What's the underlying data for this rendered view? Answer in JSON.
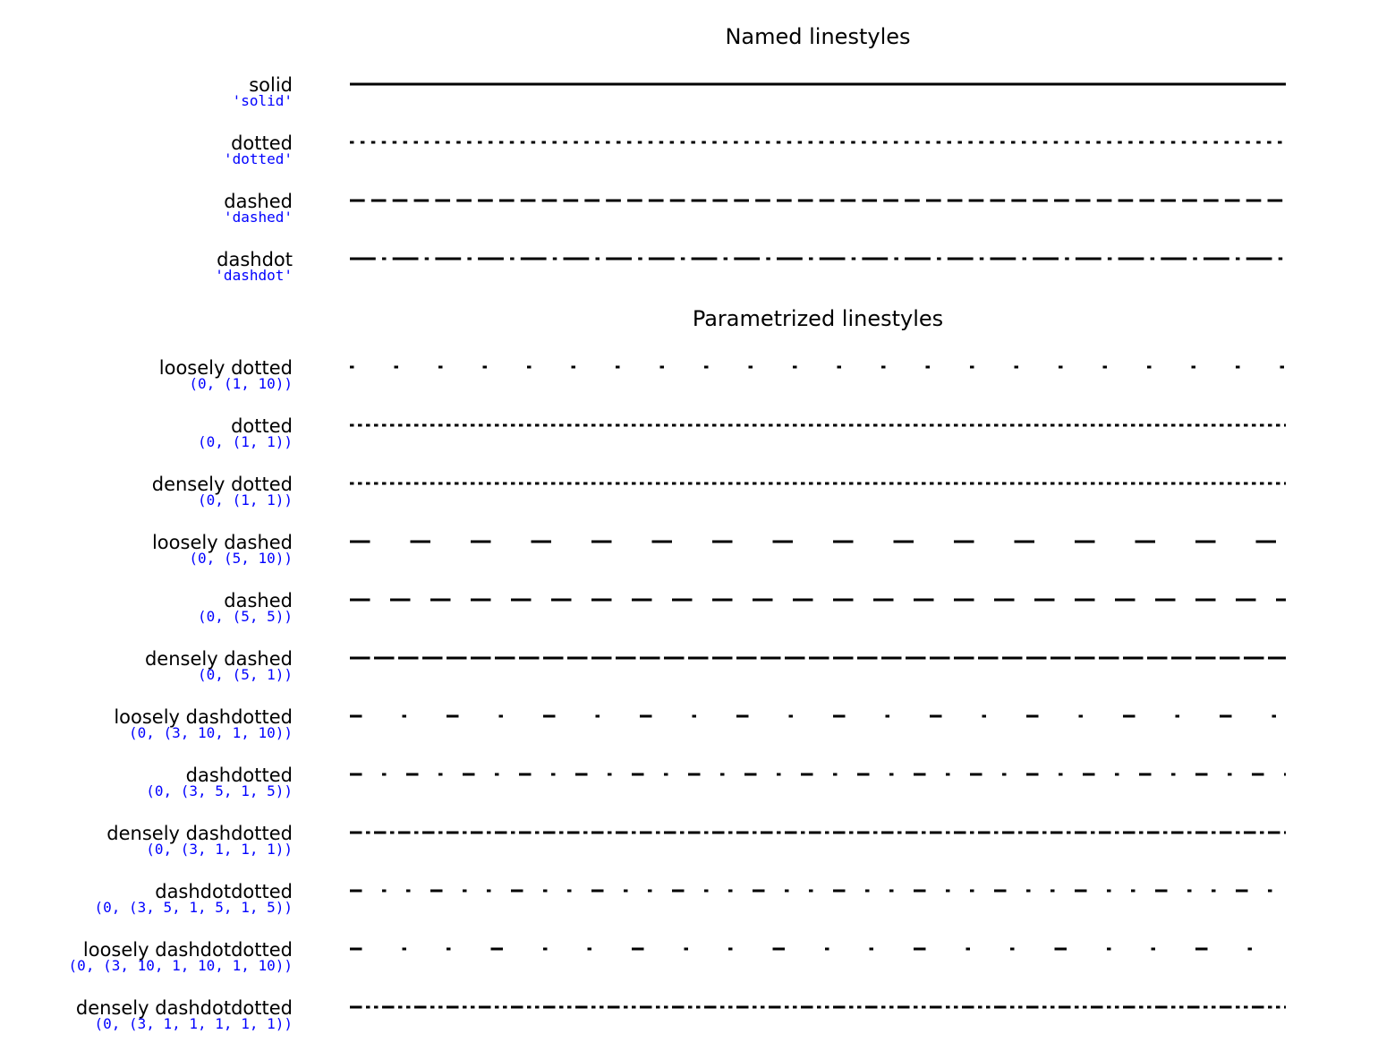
{
  "chart_data": {
    "type": "line",
    "xlim": [
      0,
      100
    ],
    "grid": false,
    "axes_visible": false,
    "line_color": "#000000",
    "spec_color": "#0000ff",
    "panels": [
      {
        "title": "Named linestyles",
        "styles": [
          {
            "name": "solid",
            "spec": "'solid'",
            "pattern": []
          },
          {
            "name": "dotted",
            "spec": "'dotted'",
            "pattern": [
              1,
              1.65
            ]
          },
          {
            "name": "dashed",
            "spec": "'dashed'",
            "pattern": [
              3.7,
              1.6
            ]
          },
          {
            "name": "dashdot",
            "spec": "'dashdot'",
            "pattern": [
              6.4,
              1.6,
              1,
              1.6
            ]
          }
        ]
      },
      {
        "title": "Parametrized linestyles",
        "styles": [
          {
            "name": "loosely dotted",
            "spec": "(0, (1, 10))",
            "pattern": [
              1,
              10
            ]
          },
          {
            "name": "dotted",
            "spec": "(0, (1, 1))",
            "pattern": [
              1,
              1
            ]
          },
          {
            "name": "densely dotted",
            "spec": "(0, (1, 1))",
            "pattern": [
              1,
              1
            ]
          },
          {
            "name": "loosely dashed",
            "spec": "(0, (5, 10))",
            "pattern": [
              5,
              10
            ]
          },
          {
            "name": "dashed",
            "spec": "(0, (5, 5))",
            "pattern": [
              5,
              5
            ]
          },
          {
            "name": "densely dashed",
            "spec": "(0, (5, 1))",
            "pattern": [
              5,
              1
            ]
          },
          {
            "name": "loosely dashdotted",
            "spec": "(0, (3, 10, 1, 10))",
            "pattern": [
              3,
              10,
              1,
              10
            ]
          },
          {
            "name": "dashdotted",
            "spec": "(0, (3, 5, 1, 5))",
            "pattern": [
              3,
              5,
              1,
              5
            ]
          },
          {
            "name": "densely dashdotted",
            "spec": "(0, (3, 1, 1, 1))",
            "pattern": [
              3,
              1,
              1,
              1
            ]
          },
          {
            "name": "dashdotdotted",
            "spec": "(0, (3, 5, 1, 5, 1, 5))",
            "pattern": [
              3,
              5,
              1,
              5,
              1,
              5
            ]
          },
          {
            "name": "loosely dashdotdotted",
            "spec": "(0, (3, 10, 1, 10, 1, 10))",
            "pattern": [
              3,
              10,
              1,
              10,
              1,
              10
            ]
          },
          {
            "name": "densely dashdotdotted",
            "spec": "(0, (3, 1, 1, 1, 1, 1))",
            "pattern": [
              3,
              1,
              1,
              1,
              1,
              1
            ]
          }
        ]
      }
    ]
  }
}
